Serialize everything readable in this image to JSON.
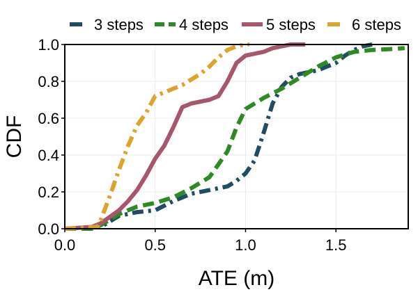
{
  "chart_data": {
    "type": "line",
    "title": "",
    "xlabel": "ATE (m)",
    "ylabel": "CDF",
    "xlim": [
      0.0,
      1.9
    ],
    "ylim": [
      0.0,
      1.0
    ],
    "grid": true,
    "legend_position": "top",
    "x_ticks": [
      {
        "value": 0.0,
        "label": "0.0"
      },
      {
        "value": 0.5,
        "label": "0.5"
      },
      {
        "value": 1.0,
        "label": "1.0"
      },
      {
        "value": 1.5,
        "label": "1.5"
      }
    ],
    "y_ticks": [
      {
        "value": 0.0,
        "label": "0.0"
      },
      {
        "value": 0.2,
        "label": "0.2"
      },
      {
        "value": 0.4,
        "label": "0.4"
      },
      {
        "value": 0.6,
        "label": "0.6"
      },
      {
        "value": 0.8,
        "label": "0.8"
      },
      {
        "value": 1.0,
        "label": "1.0"
      }
    ],
    "series": [
      {
        "name": "3 steps",
        "color": "#1f4e63",
        "dash": "dashdot",
        "x": [
          0.0,
          0.2,
          0.3,
          0.4,
          0.5,
          0.6,
          0.7,
          0.8,
          0.9,
          0.95,
          1.0,
          1.05,
          1.1,
          1.15,
          1.2,
          1.25,
          1.3,
          1.4,
          1.45,
          1.5,
          1.55,
          1.6,
          1.65,
          1.7
        ],
        "y": [
          0.0,
          0.01,
          0.07,
          0.09,
          0.1,
          0.15,
          0.19,
          0.21,
          0.23,
          0.26,
          0.3,
          0.37,
          0.52,
          0.68,
          0.77,
          0.82,
          0.84,
          0.86,
          0.88,
          0.9,
          0.94,
          0.97,
          0.99,
          1.0
        ]
      },
      {
        "name": "4 steps",
        "color": "#2e8a22",
        "dash": "dashed",
        "x": [
          0.0,
          0.15,
          0.2,
          0.3,
          0.4,
          0.5,
          0.6,
          0.7,
          0.75,
          0.8,
          0.85,
          0.9,
          0.95,
          1.0,
          1.1,
          1.2,
          1.3,
          1.4,
          1.5,
          1.6,
          1.7,
          1.8,
          1.88
        ],
        "y": [
          0.0,
          0.0,
          0.02,
          0.08,
          0.12,
          0.14,
          0.17,
          0.22,
          0.25,
          0.28,
          0.35,
          0.42,
          0.55,
          0.65,
          0.71,
          0.76,
          0.82,
          0.88,
          0.93,
          0.96,
          0.97,
          0.975,
          0.98
        ]
      },
      {
        "name": "5 steps",
        "color": "#a8566b",
        "dash": "solid",
        "x": [
          0.0,
          0.15,
          0.2,
          0.3,
          0.35,
          0.4,
          0.45,
          0.5,
          0.55,
          0.6,
          0.65,
          0.7,
          0.8,
          0.85,
          0.9,
          0.95,
          1.0,
          1.1,
          1.15,
          1.2,
          1.25,
          1.3,
          1.33
        ],
        "y": [
          0.0,
          0.01,
          0.03,
          0.1,
          0.15,
          0.21,
          0.29,
          0.38,
          0.45,
          0.55,
          0.66,
          0.68,
          0.7,
          0.72,
          0.8,
          0.9,
          0.94,
          0.96,
          0.98,
          0.99,
          1.0,
          1.0,
          1.0
        ]
      },
      {
        "name": "6 steps",
        "color": "#dca42b",
        "dash": "dashdot",
        "x": [
          0.0,
          0.18,
          0.2,
          0.25,
          0.3,
          0.35,
          0.4,
          0.45,
          0.5,
          0.55,
          0.6,
          0.65,
          0.7,
          0.75,
          0.8,
          0.85,
          0.9,
          0.95,
          1.0,
          1.02
        ],
        "y": [
          0.0,
          0.01,
          0.05,
          0.18,
          0.32,
          0.45,
          0.56,
          0.63,
          0.72,
          0.74,
          0.76,
          0.78,
          0.81,
          0.84,
          0.88,
          0.93,
          0.97,
          0.99,
          1.0,
          1.0
        ]
      }
    ]
  }
}
